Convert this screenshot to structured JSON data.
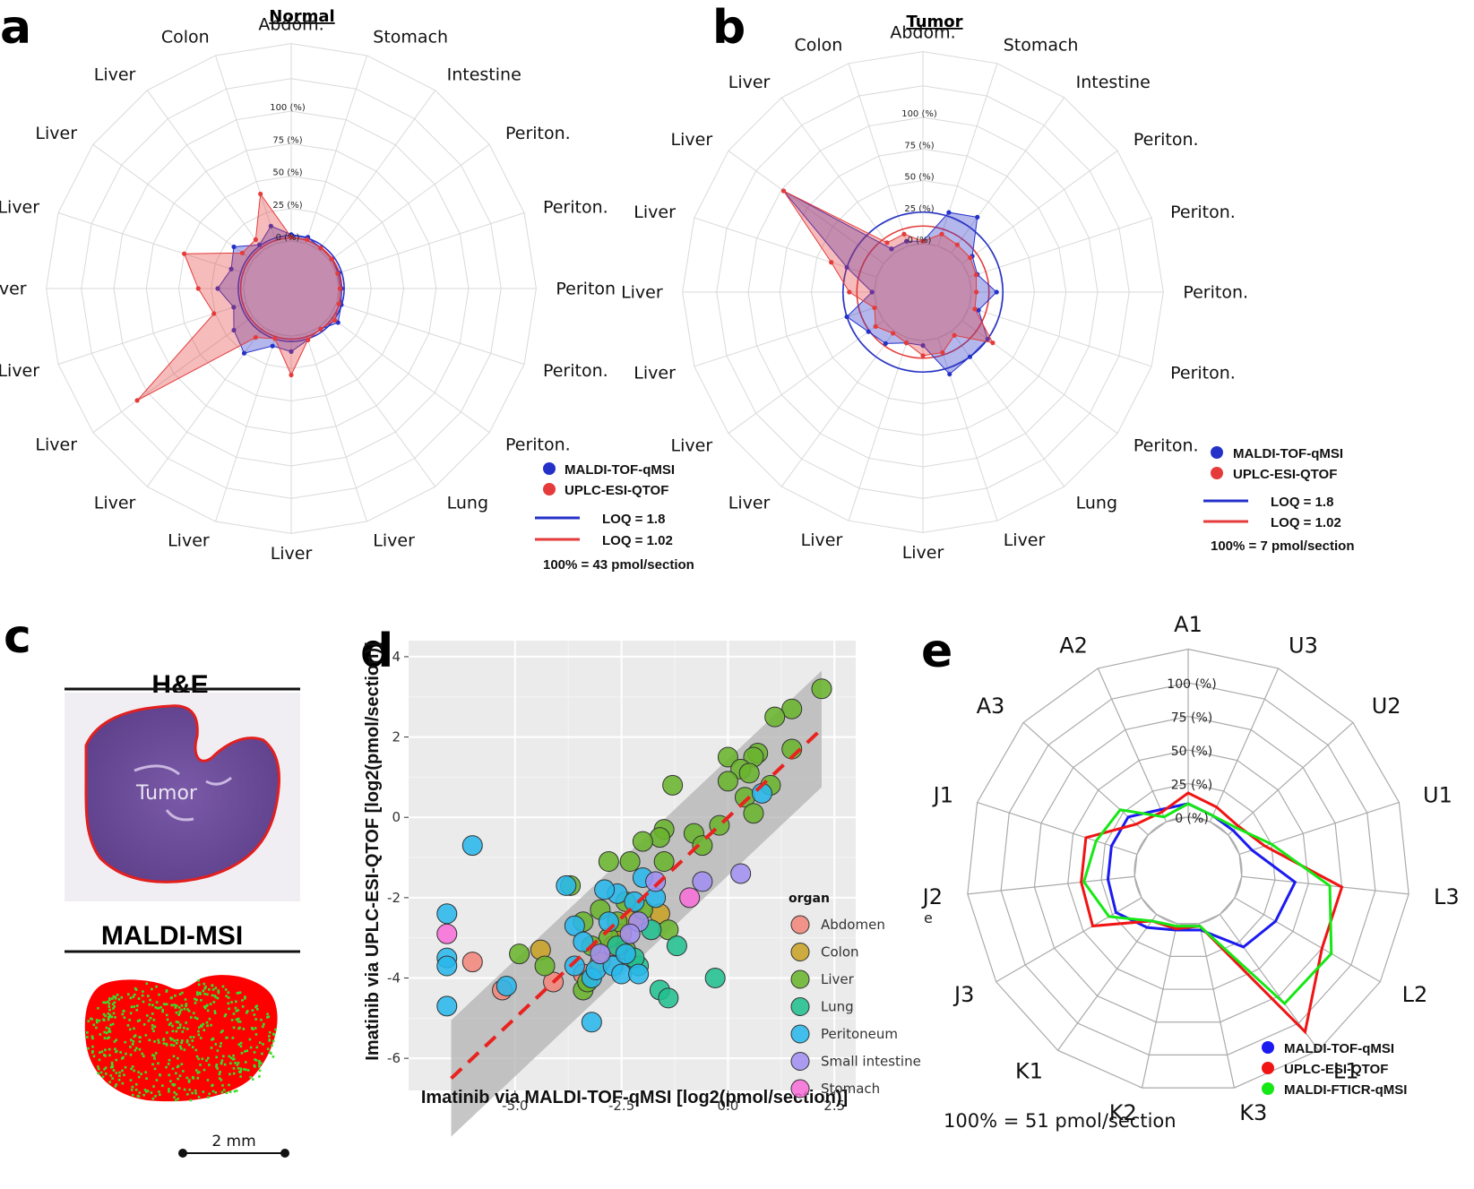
{
  "panels": {
    "a": "a",
    "b": "b",
    "c": "c",
    "d": "d",
    "e": "e"
  },
  "percent_labels": [
    "0 (%)",
    "25 (%)",
    "50 (%)",
    "75 (%)",
    "100 (%)"
  ],
  "chart_data": [
    {
      "panel": "a",
      "type": "radar",
      "title": "Normal",
      "spokes": [
        "Abdom.",
        "Stomach",
        "Intestine",
        "Periton.",
        "Periton.",
        "Periton",
        "Periton.",
        "Periton.",
        "Lung",
        "Liver",
        "Liver",
        "Liver",
        "Liver",
        "Liver",
        "Liver",
        "Liver",
        "Liver",
        "Liver",
        "Liver",
        "Colon"
      ],
      "rlim": [
        0,
        100
      ],
      "series": [
        {
          "name": "MALDI-TOF-qMSI",
          "color": "#2431c9",
          "values": [
            5,
            5,
            2,
            2,
            2,
            2,
            4,
            8,
            2,
            5,
            12,
            10,
            25,
            18,
            10,
            20,
            12,
            18,
            5,
            14
          ]
        },
        {
          "name": "UPLC-ESI-QTOF",
          "color": "#e53b3b",
          "values": [
            3,
            3,
            2,
            2,
            1,
            1,
            2,
            5,
            2,
            5,
            30,
            4,
            10,
            110,
            26,
            35,
            50,
            10,
            10,
            40
          ]
        }
      ],
      "loq": [
        {
          "label": "LOQ = 1.8",
          "color": "#2431c9",
          "value": 4.2
        },
        {
          "label": "LOQ = 1.02",
          "color": "#e53b3b",
          "value": 2.4
        }
      ],
      "note": "100% = 43 pmol/section"
    },
    {
      "panel": "b",
      "type": "radar",
      "title": "Tumor",
      "spokes": [
        "Abdom.",
        "Stomach",
        "Intestine",
        "Periton.",
        "Periton.",
        "Periton.",
        "Periton.",
        "Periton.",
        "Lung",
        "Liver",
        "Liver",
        "Liver",
        "Liver",
        "Liver",
        "Liver",
        "Liver",
        "Liver",
        "Liver",
        "Liver",
        "Colon"
      ],
      "rlim": [
        0,
        100
      ],
      "series": [
        {
          "name": "MALDI-TOF-qMSI",
          "color": "#2431c9",
          "values": [
            2,
            28,
            35,
            10,
            7,
            20,
            8,
            25,
            25,
            30,
            4,
            4,
            12,
            15,
            25,
            2,
            25,
            98,
            4,
            4
          ]
        },
        {
          "name": "UPLC-ESI-QTOF",
          "color": "#e53b3b",
          "values": [
            2,
            10,
            8,
            8,
            6,
            4,
            5,
            30,
            4,
            12,
            12,
            4,
            2,
            8,
            2,
            20,
            38,
            98,
            10,
            10
          ]
        }
      ],
      "loq": [
        {
          "label": "LOQ = 1.8",
          "color": "#2431c9",
          "value": 25
        },
        {
          "label": "LOQ = 1.02",
          "color": "#e53b3b",
          "value": 14
        }
      ],
      "note": "100% = 7 pmol/section"
    },
    {
      "panel": "d",
      "type": "scatter",
      "xlabel": "Imatinib via MALDI-TOF-qMSI [log2(pmol/section)]",
      "ylabel": "Imatinib via UPLC-ESI-QTOF [log2(pmol/section)]",
      "xlim": [
        -7.5,
        3.0
      ],
      "ylim": [
        -6.8,
        4.4
      ],
      "xticks": [
        -5.0,
        -2.5,
        0.0,
        2.5
      ],
      "xtick_labels": [
        "-5.0",
        "-2.5",
        "0.0",
        "2.5"
      ],
      "yticks": [
        4,
        2,
        0,
        -2,
        -4,
        -6
      ],
      "ytick_labels": [
        "4",
        "2",
        "0",
        "-2",
        "-4",
        "-6"
      ],
      "legend_title": "organ",
      "fit": {
        "slope": 1.0,
        "intercept": 0.0,
        "x_range": [
          -6.5,
          2.2
        ],
        "band": 1.45
      },
      "organs": [
        {
          "name": "Abdomen",
          "color": "#f3867c"
        },
        {
          "name": "Colon",
          "color": "#c9a227"
        },
        {
          "name": "Liver",
          "color": "#6ab42e"
        },
        {
          "name": "Lung",
          "color": "#22bf90"
        },
        {
          "name": "Peritoneum",
          "color": "#29b7ea"
        },
        {
          "name": "Small intestine",
          "color": "#a28ff0"
        },
        {
          "name": "Stomach",
          "color": "#f66fd8"
        }
      ],
      "points": [
        {
          "organ": "Abdomen",
          "x": -6.0,
          "y": -3.6
        },
        {
          "organ": "Abdomen",
          "x": -5.3,
          "y": -4.3
        },
        {
          "organ": "Abdomen",
          "x": -4.1,
          "y": -4.1
        },
        {
          "organ": "Abdomen",
          "x": -3.4,
          "y": -3.9
        },
        {
          "organ": "Abdomen",
          "x": -2.7,
          "y": -3.2
        },
        {
          "organ": "Colon",
          "x": -4.4,
          "y": -3.3
        },
        {
          "organ": "Colon",
          "x": -3.0,
          "y": -3.6
        },
        {
          "organ": "Colon",
          "x": -2.5,
          "y": -2.9
        },
        {
          "organ": "Colon",
          "x": -2.2,
          "y": -2.5
        },
        {
          "organ": "Colon",
          "x": -1.6,
          "y": -2.4
        },
        {
          "organ": "Liver",
          "x": 2.2,
          "y": 3.2
        },
        {
          "organ": "Liver",
          "x": 1.5,
          "y": 2.7
        },
        {
          "organ": "Liver",
          "x": 1.1,
          "y": 2.5
        },
        {
          "organ": "Liver",
          "x": 1.5,
          "y": 1.7
        },
        {
          "organ": "Liver",
          "x": 0.7,
          "y": 1.6
        },
        {
          "organ": "Liver",
          "x": 0.6,
          "y": 1.5
        },
        {
          "organ": "Liver",
          "x": 0.0,
          "y": 1.5
        },
        {
          "organ": "Liver",
          "x": 0.3,
          "y": 1.2
        },
        {
          "organ": "Liver",
          "x": 0.5,
          "y": 1.1
        },
        {
          "organ": "Liver",
          "x": 0.0,
          "y": 0.9
        },
        {
          "organ": "Liver",
          "x": 0.4,
          "y": 0.5
        },
        {
          "organ": "Liver",
          "x": 1.0,
          "y": 0.8
        },
        {
          "organ": "Liver",
          "x": 0.6,
          "y": 0.1
        },
        {
          "organ": "Liver",
          "x": -1.3,
          "y": 0.8
        },
        {
          "organ": "Liver",
          "x": -1.5,
          "y": -0.3
        },
        {
          "organ": "Liver",
          "x": -1.6,
          "y": -0.5
        },
        {
          "organ": "Liver",
          "x": -0.8,
          "y": -0.4
        },
        {
          "organ": "Liver",
          "x": -0.2,
          "y": -0.2
        },
        {
          "organ": "Liver",
          "x": -2.0,
          "y": -0.6
        },
        {
          "organ": "Liver",
          "x": -0.6,
          "y": -0.7
        },
        {
          "organ": "Liver",
          "x": -2.8,
          "y": -1.1
        },
        {
          "organ": "Liver",
          "x": -2.3,
          "y": -1.1
        },
        {
          "organ": "Liver",
          "x": -1.5,
          "y": -1.1
        },
        {
          "organ": "Liver",
          "x": -3.7,
          "y": -1.7
        },
        {
          "organ": "Liver",
          "x": -3.0,
          "y": -2.3
        },
        {
          "organ": "Liver",
          "x": -2.4,
          "y": -2.1
        },
        {
          "organ": "Liver",
          "x": -2.0,
          "y": -2.3
        },
        {
          "organ": "Liver",
          "x": -3.4,
          "y": -2.6
        },
        {
          "organ": "Liver",
          "x": -2.6,
          "y": -2.6
        },
        {
          "organ": "Liver",
          "x": -2.8,
          "y": -3.0
        },
        {
          "organ": "Liver",
          "x": -3.2,
          "y": -3.2
        },
        {
          "organ": "Liver",
          "x": -1.4,
          "y": -2.8
        },
        {
          "organ": "Liver",
          "x": -4.9,
          "y": -3.4
        },
        {
          "organ": "Liver",
          "x": -4.3,
          "y": -3.7
        },
        {
          "organ": "Liver",
          "x": -3.4,
          "y": -4.3
        },
        {
          "organ": "Liver",
          "x": -3.3,
          "y": -4.1
        },
        {
          "organ": "Liver",
          "x": -2.4,
          "y": -3.3
        },
        {
          "organ": "Lung",
          "x": -0.3,
          "y": -4.0
        },
        {
          "organ": "Lung",
          "x": -1.2,
          "y": -3.2
        },
        {
          "organ": "Lung",
          "x": -2.1,
          "y": -3.7
        },
        {
          "organ": "Lung",
          "x": -1.6,
          "y": -4.3
        },
        {
          "organ": "Lung",
          "x": -1.4,
          "y": -4.5
        },
        {
          "organ": "Lung",
          "x": -2.2,
          "y": -3.5
        },
        {
          "organ": "Lung",
          "x": -2.6,
          "y": -3.2
        },
        {
          "organ": "Lung",
          "x": -1.8,
          "y": -2.8
        },
        {
          "organ": "Peritoneum",
          "x": -6.0,
          "y": -0.7
        },
        {
          "organ": "Peritoneum",
          "x": -6.6,
          "y": -2.4
        },
        {
          "organ": "Peritoneum",
          "x": -6.6,
          "y": -3.5
        },
        {
          "organ": "Peritoneum",
          "x": -6.6,
          "y": -3.7
        },
        {
          "organ": "Peritoneum",
          "x": -6.6,
          "y": -4.7
        },
        {
          "organ": "Peritoneum",
          "x": -5.2,
          "y": -4.2
        },
        {
          "organ": "Peritoneum",
          "x": -3.6,
          "y": -2.7
        },
        {
          "organ": "Peritoneum",
          "x": -3.8,
          "y": -1.7
        },
        {
          "organ": "Peritoneum",
          "x": -3.6,
          "y": -3.7
        },
        {
          "organ": "Peritoneum",
          "x": -3.2,
          "y": -4.0
        },
        {
          "organ": "Peritoneum",
          "x": -3.1,
          "y": -3.8
        },
        {
          "organ": "Peritoneum",
          "x": -3.2,
          "y": -5.1
        },
        {
          "organ": "Peritoneum",
          "x": -2.7,
          "y": -3.7
        },
        {
          "organ": "Peritoneum",
          "x": -2.5,
          "y": -3.9
        },
        {
          "organ": "Peritoneum",
          "x": -2.4,
          "y": -3.4
        },
        {
          "organ": "Peritoneum",
          "x": -2.1,
          "y": -3.9
        },
        {
          "organ": "Peritoneum",
          "x": -2.0,
          "y": -1.5
        },
        {
          "organ": "Peritoneum",
          "x": -2.6,
          "y": -1.9
        },
        {
          "organ": "Peritoneum",
          "x": -2.2,
          "y": -2.1
        },
        {
          "organ": "Peritoneum",
          "x": -1.7,
          "y": -2.0
        },
        {
          "organ": "Peritoneum",
          "x": 0.8,
          "y": 0.6
        },
        {
          "organ": "Peritoneum",
          "x": -2.9,
          "y": -1.8
        },
        {
          "organ": "Peritoneum",
          "x": -3.4,
          "y": -3.1
        },
        {
          "organ": "Peritoneum",
          "x": -2.8,
          "y": -2.6
        },
        {
          "organ": "Small intestine",
          "x": 0.3,
          "y": -1.4
        },
        {
          "organ": "Small intestine",
          "x": -0.6,
          "y": -1.6
        },
        {
          "organ": "Small intestine",
          "x": -1.7,
          "y": -1.6
        },
        {
          "organ": "Small intestine",
          "x": -2.1,
          "y": -2.6
        },
        {
          "organ": "Small intestine",
          "x": -2.3,
          "y": -2.9
        },
        {
          "organ": "Small intestine",
          "x": -3.0,
          "y": -3.4
        },
        {
          "organ": "Stomach",
          "x": -6.6,
          "y": -2.9
        },
        {
          "organ": "Stomach",
          "x": -0.9,
          "y": -2.0
        }
      ]
    },
    {
      "panel": "e",
      "type": "radar",
      "title": "",
      "spokes": [
        "A1",
        "U3",
        "U2",
        "U1",
        "L3",
        "L2",
        "L1",
        "K3",
        "K2",
        "K1",
        "J3",
        "J2",
        "J1",
        "A3",
        "A2"
      ],
      "rlim": [
        0,
        100
      ],
      "series": [
        {
          "name": "MALDI-TOF-qMSI",
          "color": "#1b1bf0",
          "values": [
            10,
            5,
            5,
            10,
            40,
            35,
            30,
            5,
            5,
            12,
            22,
            20,
            20,
            20,
            10
          ]
        },
        {
          "name": "UPLC-ESI-QTOF",
          "color": "#f01414",
          "values": [
            18,
            12,
            10,
            20,
            75,
            75,
            108,
            2,
            4,
            6,
            42,
            40,
            40,
            12,
            8
          ]
        },
        {
          "name": "MALDI-FTICR-qMSI",
          "color": "#15e815",
          "values": [
            10,
            5,
            8,
            25,
            66,
            83,
            82,
            2,
            2,
            6,
            28,
            38,
            32,
            28,
            4
          ]
        }
      ],
      "note": "100% = 51 pmol/section",
      "stray_label": "e"
    }
  ],
  "panel_c": {
    "he_title": "H&E",
    "tumor_label": "Tumor",
    "msi_title": "MALDI-MSI",
    "scale_label": "2 mm"
  }
}
